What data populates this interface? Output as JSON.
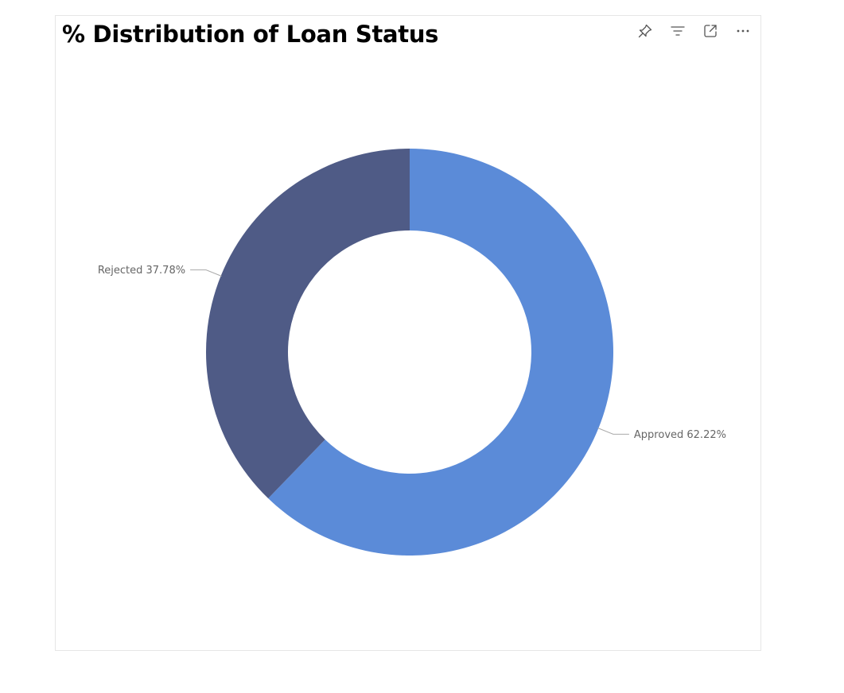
{
  "visual": {
    "title": "% Distribution of Loan Status",
    "icons": [
      "pin-icon",
      "filter-icon",
      "focus-mode-icon",
      "more-options-icon"
    ]
  },
  "chart_data": {
    "type": "pie",
    "variant": "donut",
    "title": "% Distribution of Loan Status",
    "slices": [
      {
        "label": "Approved",
        "value": 62.22,
        "display": "Approved 62.22%",
        "color": "#5b8bd8"
      },
      {
        "label": "Rejected",
        "value": 37.78,
        "display": "Rejected 37.78%",
        "color": "#4f5b86"
      }
    ],
    "legend": "none",
    "data_labels": "outside with leader lines"
  }
}
